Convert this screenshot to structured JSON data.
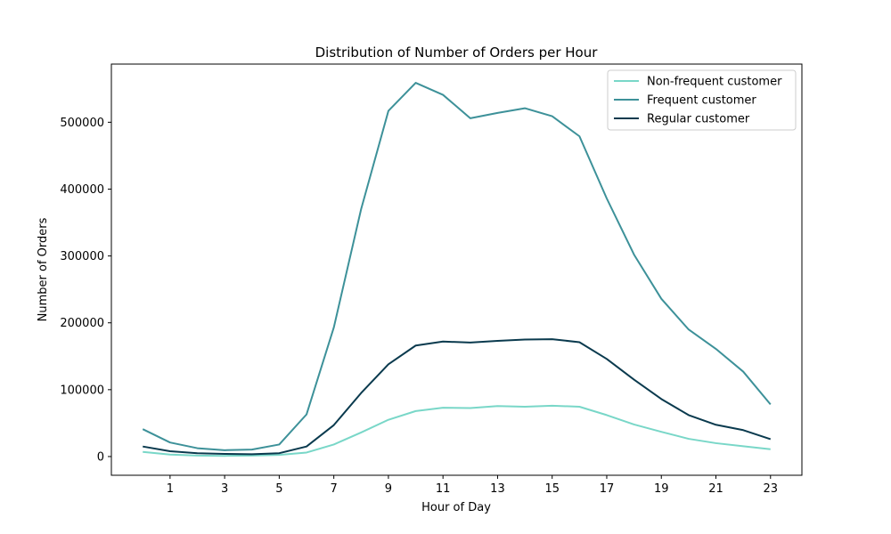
{
  "chart_data": {
    "type": "line",
    "title": "Distribution of Number of Orders per Hour",
    "xlabel": "Hour of Day",
    "ylabel": "Number of Orders",
    "x": [
      0,
      1,
      2,
      3,
      4,
      5,
      6,
      7,
      8,
      9,
      10,
      11,
      12,
      13,
      14,
      15,
      16,
      17,
      18,
      19,
      20,
      21,
      22,
      23
    ],
    "xticks": [
      1,
      3,
      5,
      7,
      9,
      11,
      13,
      15,
      17,
      19,
      21,
      23
    ],
    "xlim": [
      -1.15,
      24.15
    ],
    "yticks": [
      0,
      100000,
      200000,
      300000,
      400000,
      500000
    ],
    "ylim": [
      -28000,
      587000
    ],
    "grid": false,
    "legend_position": "top-right",
    "series": [
      {
        "name": "Non-frequent customer",
        "color": "#79d7c8",
        "values": [
          7000,
          3000,
          1500,
          1000,
          1500,
          2500,
          6000,
          18000,
          36000,
          55000,
          68000,
          73000,
          72500,
          75500,
          74500,
          76000,
          74500,
          62000,
          48000,
          37000,
          26500,
          20000,
          15500,
          11000
        ]
      },
      {
        "name": "Frequent customer",
        "color": "#3d9199",
        "values": [
          41000,
          21000,
          12500,
          9500,
          10500,
          18000,
          63000,
          193000,
          370000,
          517000,
          559000,
          541000,
          506000,
          514000,
          521000,
          509000,
          479000,
          386000,
          302000,
          236000,
          190000,
          161000,
          127000,
          78000
        ]
      },
      {
        "name": "Regular customer",
        "color": "#0a3a4e",
        "values": [
          15000,
          8000,
          5000,
          4000,
          3500,
          5000,
          15000,
          47000,
          95000,
          138000,
          166000,
          172000,
          170500,
          173000,
          175000,
          175500,
          171000,
          146000,
          115000,
          86000,
          62000,
          47500,
          39500,
          26000
        ]
      }
    ]
  }
}
